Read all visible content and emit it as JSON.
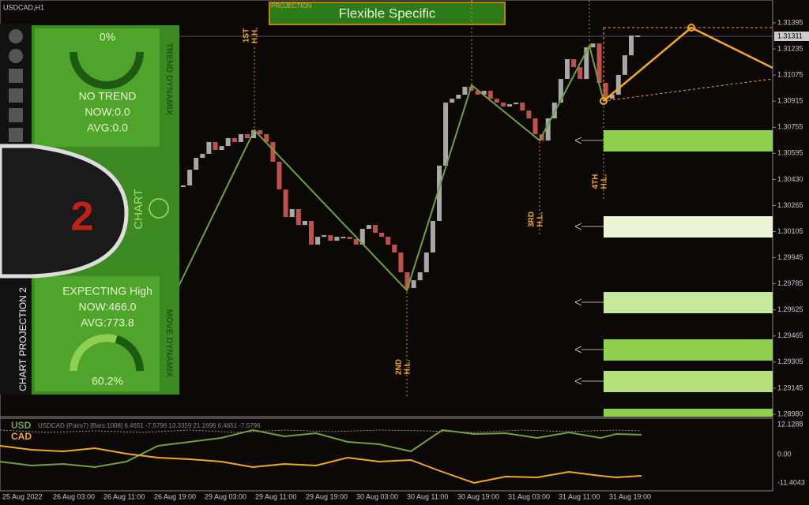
{
  "window": {
    "symbol": "USDCAD,H1"
  },
  "projection_box": {
    "label": "PROJECTION",
    "title": "Flexible Specific"
  },
  "price_axis": {
    "labels": [
      "1.31395",
      "1.31235",
      "1.31075",
      "1.30915",
      "1.30755",
      "1.30595",
      "1.30430",
      "1.30265",
      "1.30105",
      "1.29945",
      "1.29785",
      "1.29625",
      "1.29465",
      "1.29305",
      "1.29145",
      "1.28980"
    ],
    "current": "1.31311"
  },
  "time_axis": {
    "labels": [
      "25 Aug 2022",
      "26 Aug 03:00",
      "26 Aug 11:00",
      "26 Aug 19:00",
      "29 Aug 03:00",
      "29 Aug 11:00",
      "29 Aug 19:00",
      "30 Aug 03:00",
      "30 Aug 11:00",
      "30 Aug 19:00",
      "31 Aug 03:00",
      "31 Aug 11:00",
      "31 Aug 19:00"
    ]
  },
  "candles": [
    1.30392,
    1.30489,
    1.30562,
    1.30587,
    1.3066,
    1.30611,
    1.30635,
    1.30684,
    1.3066,
    1.30708,
    1.30684,
    1.30733,
    1.30708,
    1.3066,
    1.30538,
    1.30367,
    1.30197,
    1.30246,
    1.30148,
    1.30173,
    1.30027,
    1.30075,
    1.30085,
    1.30051,
    1.30075,
    1.30075,
    1.30061,
    1.30027,
    1.30124,
    1.30148,
    1.301,
    1.30075,
    1.30027,
    1.29978,
    1.29856,
    1.29759,
    1.29807,
    1.29856,
    1.29978,
    1.30173,
    1.30514,
    1.30903,
    1.30927,
    1.30952,
    1.31001,
    1.30976,
    1.30952,
    1.30976,
    1.30927,
    1.30903,
    1.30879,
    1.30893,
    1.30903,
    1.30854,
    1.30806,
    1.30708,
    1.30669,
    1.30806,
    1.30903,
    1.31049,
    1.31171,
    1.31122,
    1.31049,
    1.31244,
    1.31268,
    1.31025,
    1.30927,
    1.30952,
    1.31074,
    1.31195,
    1.31317,
    1.31317
  ],
  "swing_labels": [
    [
      "1ST",
      "H.H."
    ],
    [
      "2ND",
      "H.L."
    ],
    [
      "3RD",
      "H.L."
    ],
    [
      "4TH",
      "H.L."
    ]
  ],
  "panel": {
    "top_percent": "0%",
    "trend": "NO TREND",
    "trend_now": "NOW:0.0",
    "trend_avg": "AVG:0.0",
    "trend_title": "TREND DYNAMIX",
    "chart": "CHART",
    "logo": "2",
    "expect": "EXPECTING High",
    "move_now": "NOW:466.0",
    "move_avg": "AVG:773.8",
    "bottom_percent": "60.2%",
    "move_title": "MOVE DYNAMIX",
    "side_title": "CHART PROJECTION 2"
  },
  "indicator": {
    "usd": "USD",
    "cad": "CAD",
    "header": "USDCAD (Pairs7) [Bars:1008] 6.4651 -7.5796 13.3359 21.1696 6.4651 -7.5796",
    "labels": [
      "12.1288",
      "0.00",
      "-11.4043"
    ]
  }
}
